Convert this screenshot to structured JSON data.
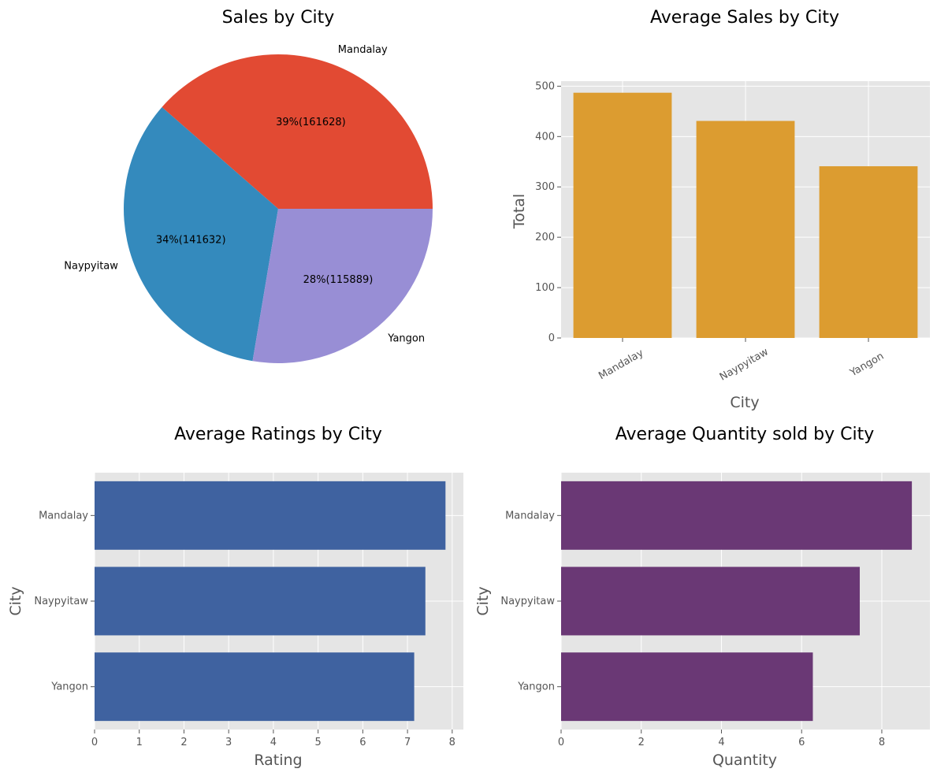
{
  "chart_data": [
    {
      "type": "pie",
      "title": "Sales by City",
      "categories": [
        "Mandalay",
        "Naypyitaw",
        "Yangon"
      ],
      "values": [
        161628,
        141632,
        115889
      ],
      "percent_labels": [
        "39%(161628)",
        "34%(141632)",
        "28%(115889)"
      ],
      "colors": [
        "#e24a33",
        "#348abd",
        "#988ed5"
      ]
    },
    {
      "type": "bar",
      "title": "Average Sales by City",
      "categories": [
        "Mandalay",
        "Naypyitaw",
        "Yangon"
      ],
      "values": [
        487,
        431,
        341
      ],
      "xlabel": "City",
      "ylabel": "Total",
      "ylim": [
        0,
        510
      ],
      "yticks": [
        0,
        100,
        200,
        300,
        400,
        500
      ],
      "color": "#dc9c30",
      "grid": true
    },
    {
      "type": "bar",
      "orientation": "horizontal",
      "title": "Average Ratings by City",
      "categories": [
        "Mandalay",
        "Naypyitaw",
        "Yangon"
      ],
      "values": [
        7.85,
        7.4,
        7.15
      ],
      "xlabel": "Rating",
      "ylabel": "City",
      "xlim": [
        0,
        8.25
      ],
      "xticks": [
        0,
        1,
        2,
        3,
        4,
        5,
        6,
        7,
        8
      ],
      "color": "#3f62a0",
      "grid": true
    },
    {
      "type": "bar",
      "orientation": "horizontal",
      "title": "Average Quantity sold by City",
      "categories": [
        "Mandalay",
        "Naypyitaw",
        "Yangon"
      ],
      "values": [
        8.75,
        7.45,
        6.28
      ],
      "xlabel": "Quantity",
      "ylabel": "City",
      "xlim": [
        0,
        9.2
      ],
      "xticks": [
        0,
        2,
        4,
        6,
        8
      ],
      "color": "#6a3875",
      "grid": true
    }
  ]
}
